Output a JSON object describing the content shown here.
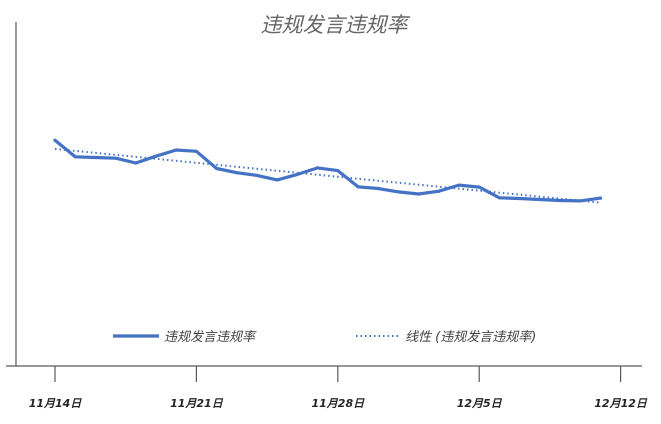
{
  "chart_data": {
    "type": "line",
    "title": "违规发言违规率",
    "xlabel": "",
    "ylabel": "",
    "x_tick_labels": [
      "11月14日",
      "11月21日",
      "11月28日",
      "12月5日",
      "12月12日"
    ],
    "x_tick_days": [
      0,
      7,
      14,
      21,
      28
    ],
    "series": [
      {
        "name": "违规发言违规率",
        "color": "#4472C4",
        "values": [
          0.656,
          0.608,
          0.606,
          0.604,
          0.59,
          0.61,
          0.628,
          0.624,
          0.574,
          0.562,
          0.554,
          0.541,
          0.557,
          0.576,
          0.568,
          0.521,
          0.516,
          0.506,
          0.5,
          0.508,
          0.526,
          0.52,
          0.489,
          0.487,
          0.484,
          0.481,
          0.48,
          0.488
        ]
      }
    ],
    "trendline": {
      "name": "线性 (违规发言违规率)",
      "color": "#4472C4",
      "style": "dotted",
      "start": 0.631,
      "end": 0.475
    },
    "ylim": [
      0,
      1
    ],
    "grid": false,
    "legend": "bottom"
  }
}
